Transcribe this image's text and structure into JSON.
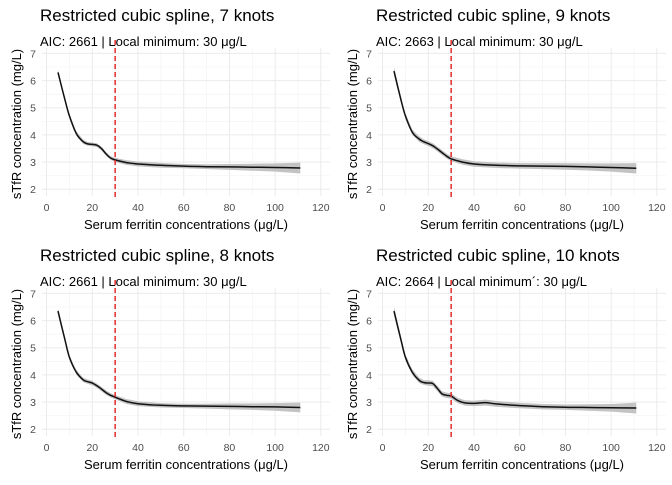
{
  "chart_data": [
    {
      "type": "line",
      "title": "Restricted cubic spline, 7 knots",
      "subtitle": "AIC: 2661  | Local minimum: 30 μg/L",
      "xlabel": "Serum ferritin concentrations (μg/L)",
      "ylabel": "sTfR concentration (mg/L)",
      "xlim": [
        -2,
        124
      ],
      "ylim": [
        1.75,
        7.2
      ],
      "xticks": [
        0,
        20,
        40,
        60,
        80,
        100,
        120
      ],
      "yticks": [
        2,
        3,
        4,
        5,
        6,
        7
      ],
      "grid": true,
      "vline": 30,
      "x": [
        5,
        8,
        10,
        13,
        16,
        18,
        20,
        22,
        24,
        26,
        28,
        30,
        35,
        40,
        50,
        60,
        70,
        80,
        90,
        100,
        111
      ],
      "y": [
        6.3,
        5.3,
        4.7,
        4.05,
        3.75,
        3.67,
        3.65,
        3.62,
        3.5,
        3.3,
        3.15,
        3.08,
        2.98,
        2.93,
        2.88,
        2.85,
        2.83,
        2.82,
        2.81,
        2.8,
        2.78
      ],
      "lower": [
        6.2,
        5.22,
        4.62,
        3.97,
        3.67,
        3.6,
        3.58,
        3.55,
        3.43,
        3.23,
        3.08,
        3.0,
        2.89,
        2.84,
        2.79,
        2.77,
        2.74,
        2.71,
        2.68,
        2.65,
        2.58
      ],
      "upper": [
        6.4,
        5.38,
        4.78,
        4.13,
        3.83,
        3.74,
        3.72,
        3.69,
        3.57,
        3.37,
        3.22,
        3.16,
        3.07,
        3.02,
        2.97,
        2.93,
        2.92,
        2.93,
        2.94,
        2.95,
        2.98
      ]
    },
    {
      "type": "line",
      "title": "Restricted cubic spline, 9 knots",
      "subtitle": "AIC: 2663  | Local minimum: 30 μg/L",
      "xlabel": "Serum ferritin concentrations (μg/L)",
      "ylabel": "sTfR concentration (mg/L)",
      "xlim": [
        -2,
        124
      ],
      "ylim": [
        1.75,
        7.2
      ],
      "xticks": [
        0,
        20,
        40,
        60,
        80,
        100,
        120
      ],
      "yticks": [
        2,
        3,
        4,
        5,
        6,
        7
      ],
      "grid": true,
      "vline": 30,
      "x": [
        5,
        8,
        10,
        13,
        16,
        18,
        20,
        22,
        24,
        26,
        28,
        30,
        35,
        40,
        50,
        60,
        70,
        80,
        90,
        100,
        111
      ],
      "y": [
        6.35,
        5.3,
        4.7,
        4.1,
        3.85,
        3.75,
        3.68,
        3.6,
        3.48,
        3.35,
        3.22,
        3.12,
        3.0,
        2.93,
        2.88,
        2.86,
        2.85,
        2.84,
        2.82,
        2.8,
        2.77
      ],
      "lower": [
        6.2,
        5.2,
        4.6,
        4.0,
        3.75,
        3.66,
        3.59,
        3.51,
        3.39,
        3.26,
        3.13,
        3.03,
        2.9,
        2.83,
        2.78,
        2.76,
        2.74,
        2.72,
        2.69,
        2.65,
        2.58
      ],
      "upper": [
        6.5,
        5.4,
        4.8,
        4.2,
        3.95,
        3.84,
        3.77,
        3.69,
        3.57,
        3.44,
        3.31,
        3.21,
        3.1,
        3.03,
        2.98,
        2.96,
        2.96,
        2.96,
        2.95,
        2.95,
        2.96
      ]
    },
    {
      "type": "line",
      "title": "Restricted cubic spline, 8 knots",
      "subtitle": "AIC: 2661  | Local minimum: 30 μg/L",
      "xlabel": "Serum ferritin concentrations (μg/L)",
      "ylabel": "sTfR concentration (mg/L)",
      "xlim": [
        -2,
        124
      ],
      "ylim": [
        1.75,
        7.2
      ],
      "xticks": [
        0,
        20,
        40,
        60,
        80,
        100,
        120
      ],
      "yticks": [
        2,
        3,
        4,
        5,
        6,
        7
      ],
      "grid": true,
      "vline": 30,
      "x": [
        5,
        8,
        10,
        13,
        16,
        18,
        20,
        22,
        24,
        26,
        28,
        30,
        35,
        40,
        50,
        60,
        70,
        80,
        90,
        100,
        111
      ],
      "y": [
        6.35,
        5.3,
        4.65,
        4.1,
        3.82,
        3.75,
        3.7,
        3.6,
        3.48,
        3.35,
        3.25,
        3.18,
        3.02,
        2.94,
        2.88,
        2.86,
        2.85,
        2.84,
        2.83,
        2.82,
        2.8
      ],
      "lower": [
        6.25,
        5.2,
        4.57,
        4.02,
        3.74,
        3.67,
        3.62,
        3.52,
        3.4,
        3.27,
        3.17,
        3.1,
        2.93,
        2.85,
        2.8,
        2.78,
        2.76,
        2.73,
        2.71,
        2.68,
        2.62
      ],
      "upper": [
        6.45,
        5.4,
        4.73,
        4.18,
        3.9,
        3.83,
        3.78,
        3.68,
        3.56,
        3.43,
        3.33,
        3.26,
        3.11,
        3.03,
        2.96,
        2.94,
        2.94,
        2.95,
        2.95,
        2.96,
        2.98
      ]
    },
    {
      "type": "line",
      "title": "Restricted cubic spline, 10 knots",
      "subtitle": "AIC: 2664  | Local minimum´: 30 μg/L",
      "xlabel": "Serum ferritin concentrations (μg/L)",
      "ylabel": "sTfR concentration (mg/L)",
      "xlim": [
        -2,
        124
      ],
      "ylim": [
        1.75,
        7.2
      ],
      "xticks": [
        0,
        20,
        40,
        60,
        80,
        100,
        120
      ],
      "yticks": [
        2,
        3,
        4,
        5,
        6,
        7
      ],
      "grid": true,
      "vline": 30,
      "x": [
        5,
        8,
        10,
        13,
        16,
        18,
        20,
        22,
        24,
        26,
        28,
        30,
        33,
        36,
        40,
        45,
        50,
        60,
        70,
        80,
        90,
        100,
        111
      ],
      "y": [
        6.35,
        5.3,
        4.65,
        4.1,
        3.8,
        3.72,
        3.7,
        3.68,
        3.5,
        3.3,
        3.25,
        3.22,
        3.05,
        2.97,
        2.95,
        2.98,
        2.93,
        2.87,
        2.83,
        2.81,
        2.8,
        2.79,
        2.78
      ],
      "lower": [
        6.2,
        5.18,
        4.55,
        4.0,
        3.7,
        3.63,
        3.6,
        3.58,
        3.4,
        3.2,
        3.15,
        3.12,
        2.95,
        2.87,
        2.85,
        2.87,
        2.82,
        2.77,
        2.73,
        2.71,
        2.68,
        2.65,
        2.58
      ],
      "upper": [
        6.5,
        5.42,
        4.75,
        4.2,
        3.9,
        3.81,
        3.8,
        3.78,
        3.6,
        3.4,
        3.35,
        3.32,
        3.15,
        3.07,
        3.05,
        3.09,
        3.04,
        2.97,
        2.93,
        2.91,
        2.92,
        2.93,
        2.98
      ]
    }
  ]
}
